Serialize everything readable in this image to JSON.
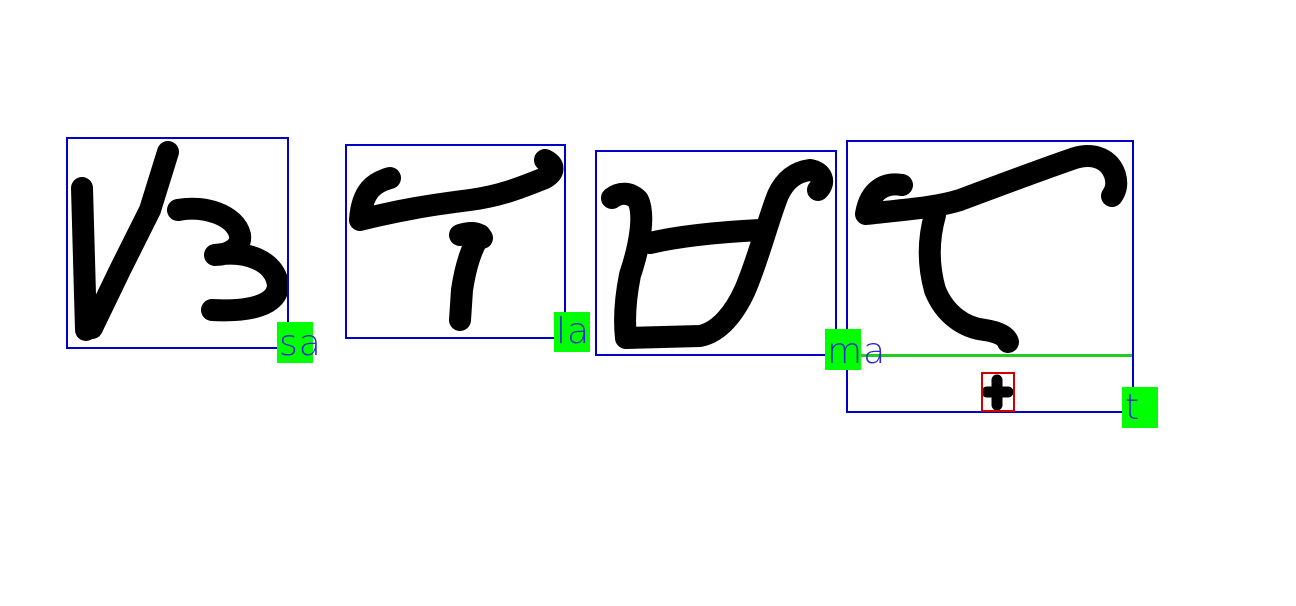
{
  "colors": {
    "box": "#0000c8",
    "label_bg": "#00ff00",
    "label_text": "#2a2ad0",
    "stroke": "#000000",
    "guide_line": "#22cc22",
    "sub_box": "#d00000"
  },
  "characters": [
    {
      "label": "sa",
      "icon": "baybayin-sa-glyph"
    },
    {
      "label": "la",
      "icon": "baybayin-la-glyph"
    },
    {
      "label": "ma",
      "icon": "baybayin-ma-glyph"
    },
    {
      "label": "t",
      "icon": "baybayin-ta-glyph"
    }
  ],
  "kudlit": {
    "icon": "plus-kudlit-mark"
  }
}
